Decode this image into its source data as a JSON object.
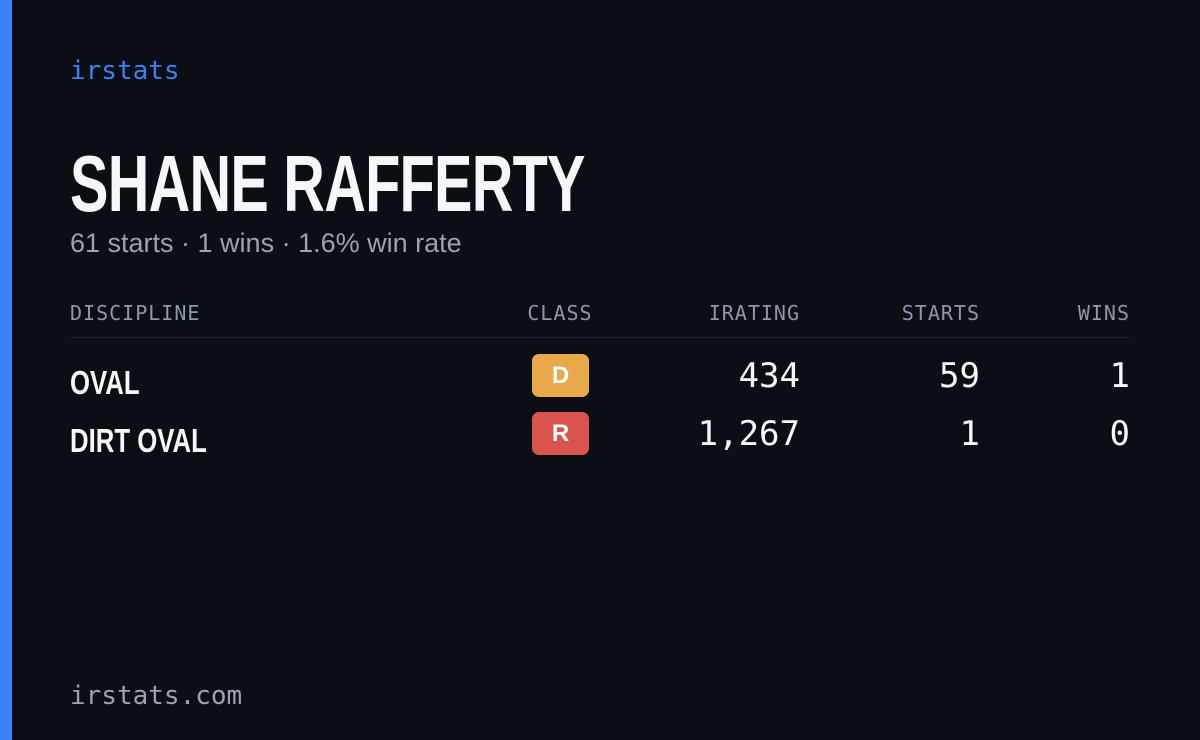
{
  "brand": "irstats",
  "driver": {
    "name": "SHANE RAFFERTY",
    "summary": "61 starts · 1 wins · 1.6% win rate"
  },
  "table": {
    "headers": [
      "DISCIPLINE",
      "CLASS",
      "IRATING",
      "STARTS",
      "WINS"
    ],
    "rows": [
      {
        "discipline": "OVAL",
        "class": "D",
        "class_color": "#e9a94b",
        "irating": "434",
        "starts": "59",
        "wins": "1"
      },
      {
        "discipline": "DIRT OVAL",
        "class": "R",
        "class_color": "#d9534f",
        "irating": "1,267",
        "starts": "1",
        "wins": "0"
      }
    ]
  },
  "footer": "irstats.com"
}
